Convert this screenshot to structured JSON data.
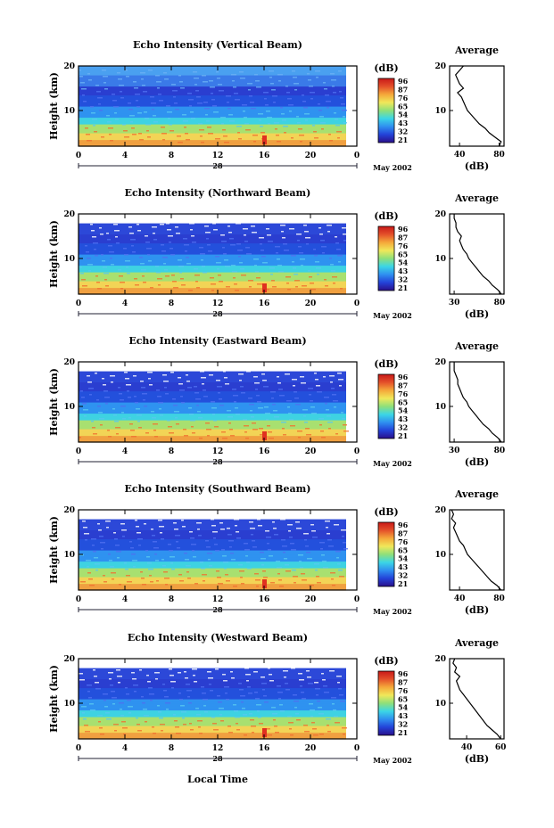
{
  "figure": {
    "xlabel": "Local Time",
    "date_label": "May 2002",
    "units_label": "(dB)",
    "avg_title": "Average"
  },
  "colorbar": {
    "tick_labels": [
      "96",
      "87",
      "76",
      "65",
      "54",
      "43",
      "32",
      "21"
    ],
    "colors": [
      "#2a0f8a",
      "#2342d8",
      "#2f8ff0",
      "#3bd6e6",
      "#8fe07a",
      "#f0e85a",
      "#f5a83a",
      "#e4502a",
      "#c81818"
    ]
  },
  "chart_data": [
    {
      "type": "heatmap",
      "title": "Echo Intensity (Vertical Beam)",
      "ylabel": "Height (km)",
      "xlim": [
        0,
        24
      ],
      "ylim": [
        2,
        20
      ],
      "x_ticks": [
        "0",
        "4",
        "8",
        "12",
        "16",
        "20",
        "0"
      ],
      "y_ticks": [
        "20",
        "10"
      ],
      "day_label": "28",
      "clim": [
        21,
        96
      ],
      "profile": {
        "title": "Average",
        "xlabel": "(dB)",
        "x_ticks": [
          "40",
          "80"
        ],
        "xlim": [
          30,
          85
        ],
        "heights": [
          2,
          3,
          4,
          5,
          6,
          7,
          8,
          9,
          10,
          11,
          12,
          13,
          14,
          15,
          16,
          17,
          18,
          19,
          20
        ],
        "values": [
          80,
          82,
          76,
          70,
          66,
          60,
          56,
          52,
          48,
          46,
          44,
          42,
          38,
          44,
          40,
          38,
          36,
          40,
          44
        ]
      }
    },
    {
      "type": "heatmap",
      "title": "Echo Intensity (Northward Beam)",
      "ylabel": "Height (km)",
      "xlim": [
        0,
        24
      ],
      "ylim": [
        2,
        20
      ],
      "x_ticks": [
        "0",
        "4",
        "8",
        "12",
        "16",
        "20",
        "0"
      ],
      "y_ticks": [
        "20",
        "10"
      ],
      "day_label": "28",
      "clim": [
        21,
        96
      ],
      "profile": {
        "title": "Average",
        "xlabel": "(dB)",
        "x_ticks": [
          "30",
          "80"
        ],
        "xlim": [
          25,
          85
        ],
        "heights": [
          2,
          3,
          4,
          5,
          6,
          7,
          8,
          9,
          10,
          11,
          12,
          13,
          14,
          15,
          16,
          17,
          18,
          19,
          20
        ],
        "values": [
          82,
          78,
          72,
          68,
          62,
          58,
          54,
          50,
          46,
          44,
          40,
          38,
          36,
          38,
          34,
          32,
          32,
          30,
          30
        ]
      }
    },
    {
      "type": "heatmap",
      "title": "Echo Intensity (Eastward Beam)",
      "ylabel": "Height (km)",
      "xlim": [
        0,
        24
      ],
      "ylim": [
        2,
        20
      ],
      "x_ticks": [
        "0",
        "4",
        "8",
        "12",
        "16",
        "20",
        "0"
      ],
      "y_ticks": [
        "20",
        "10"
      ],
      "day_label": "28",
      "clim": [
        21,
        96
      ],
      "profile": {
        "title": "Average",
        "xlabel": "(dB)",
        "x_ticks": [
          "30",
          "80"
        ],
        "xlim": [
          25,
          85
        ],
        "heights": [
          2,
          3,
          4,
          5,
          6,
          7,
          8,
          9,
          10,
          11,
          12,
          13,
          14,
          15,
          16,
          17,
          18,
          19,
          20
        ],
        "values": [
          82,
          78,
          72,
          68,
          62,
          58,
          54,
          50,
          46,
          44,
          40,
          38,
          36,
          34,
          34,
          32,
          30,
          30,
          30
        ]
      }
    },
    {
      "type": "heatmap",
      "title": "Echo Intensity (Southward Beam)",
      "ylabel": "Height (km)",
      "xlim": [
        0,
        24
      ],
      "ylim": [
        2,
        20
      ],
      "x_ticks": [
        "0",
        "4",
        "8",
        "12",
        "16",
        "20",
        "0"
      ],
      "y_ticks": [
        "20",
        "10"
      ],
      "day_label": "28",
      "clim": [
        21,
        96
      ],
      "profile": {
        "title": "Average",
        "xlabel": "(dB)",
        "x_ticks": [
          "40",
          "80"
        ],
        "xlim": [
          30,
          85
        ],
        "heights": [
          2,
          3,
          4,
          5,
          6,
          7,
          8,
          9,
          10,
          11,
          12,
          13,
          14,
          15,
          16,
          17,
          18,
          19,
          20
        ],
        "values": [
          82,
          78,
          72,
          68,
          64,
          60,
          56,
          52,
          48,
          46,
          44,
          40,
          38,
          36,
          34,
          36,
          32,
          34,
          32
        ]
      }
    },
    {
      "type": "heatmap",
      "title": "Echo Intensity (Westward Beam)",
      "ylabel": "Height (km)",
      "xlim": [
        0,
        24
      ],
      "ylim": [
        2,
        20
      ],
      "x_ticks": [
        "0",
        "4",
        "8",
        "12",
        "16",
        "20",
        "0"
      ],
      "y_ticks": [
        "20",
        "10"
      ],
      "day_label": "28",
      "clim": [
        21,
        96
      ],
      "profile": {
        "title": "Average",
        "xlabel": "(dB)",
        "x_ticks": [
          "40",
          "60"
        ],
        "xlim": [
          30,
          62
        ],
        "heights": [
          2,
          3,
          4,
          5,
          6,
          7,
          8,
          9,
          10,
          11,
          12,
          13,
          14,
          15,
          16,
          17,
          18,
          19,
          20
        ],
        "values": [
          60,
          58,
          55,
          52,
          50,
          48,
          46,
          44,
          42,
          40,
          38,
          36,
          35,
          34,
          36,
          33,
          34,
          32,
          33
        ]
      }
    }
  ]
}
